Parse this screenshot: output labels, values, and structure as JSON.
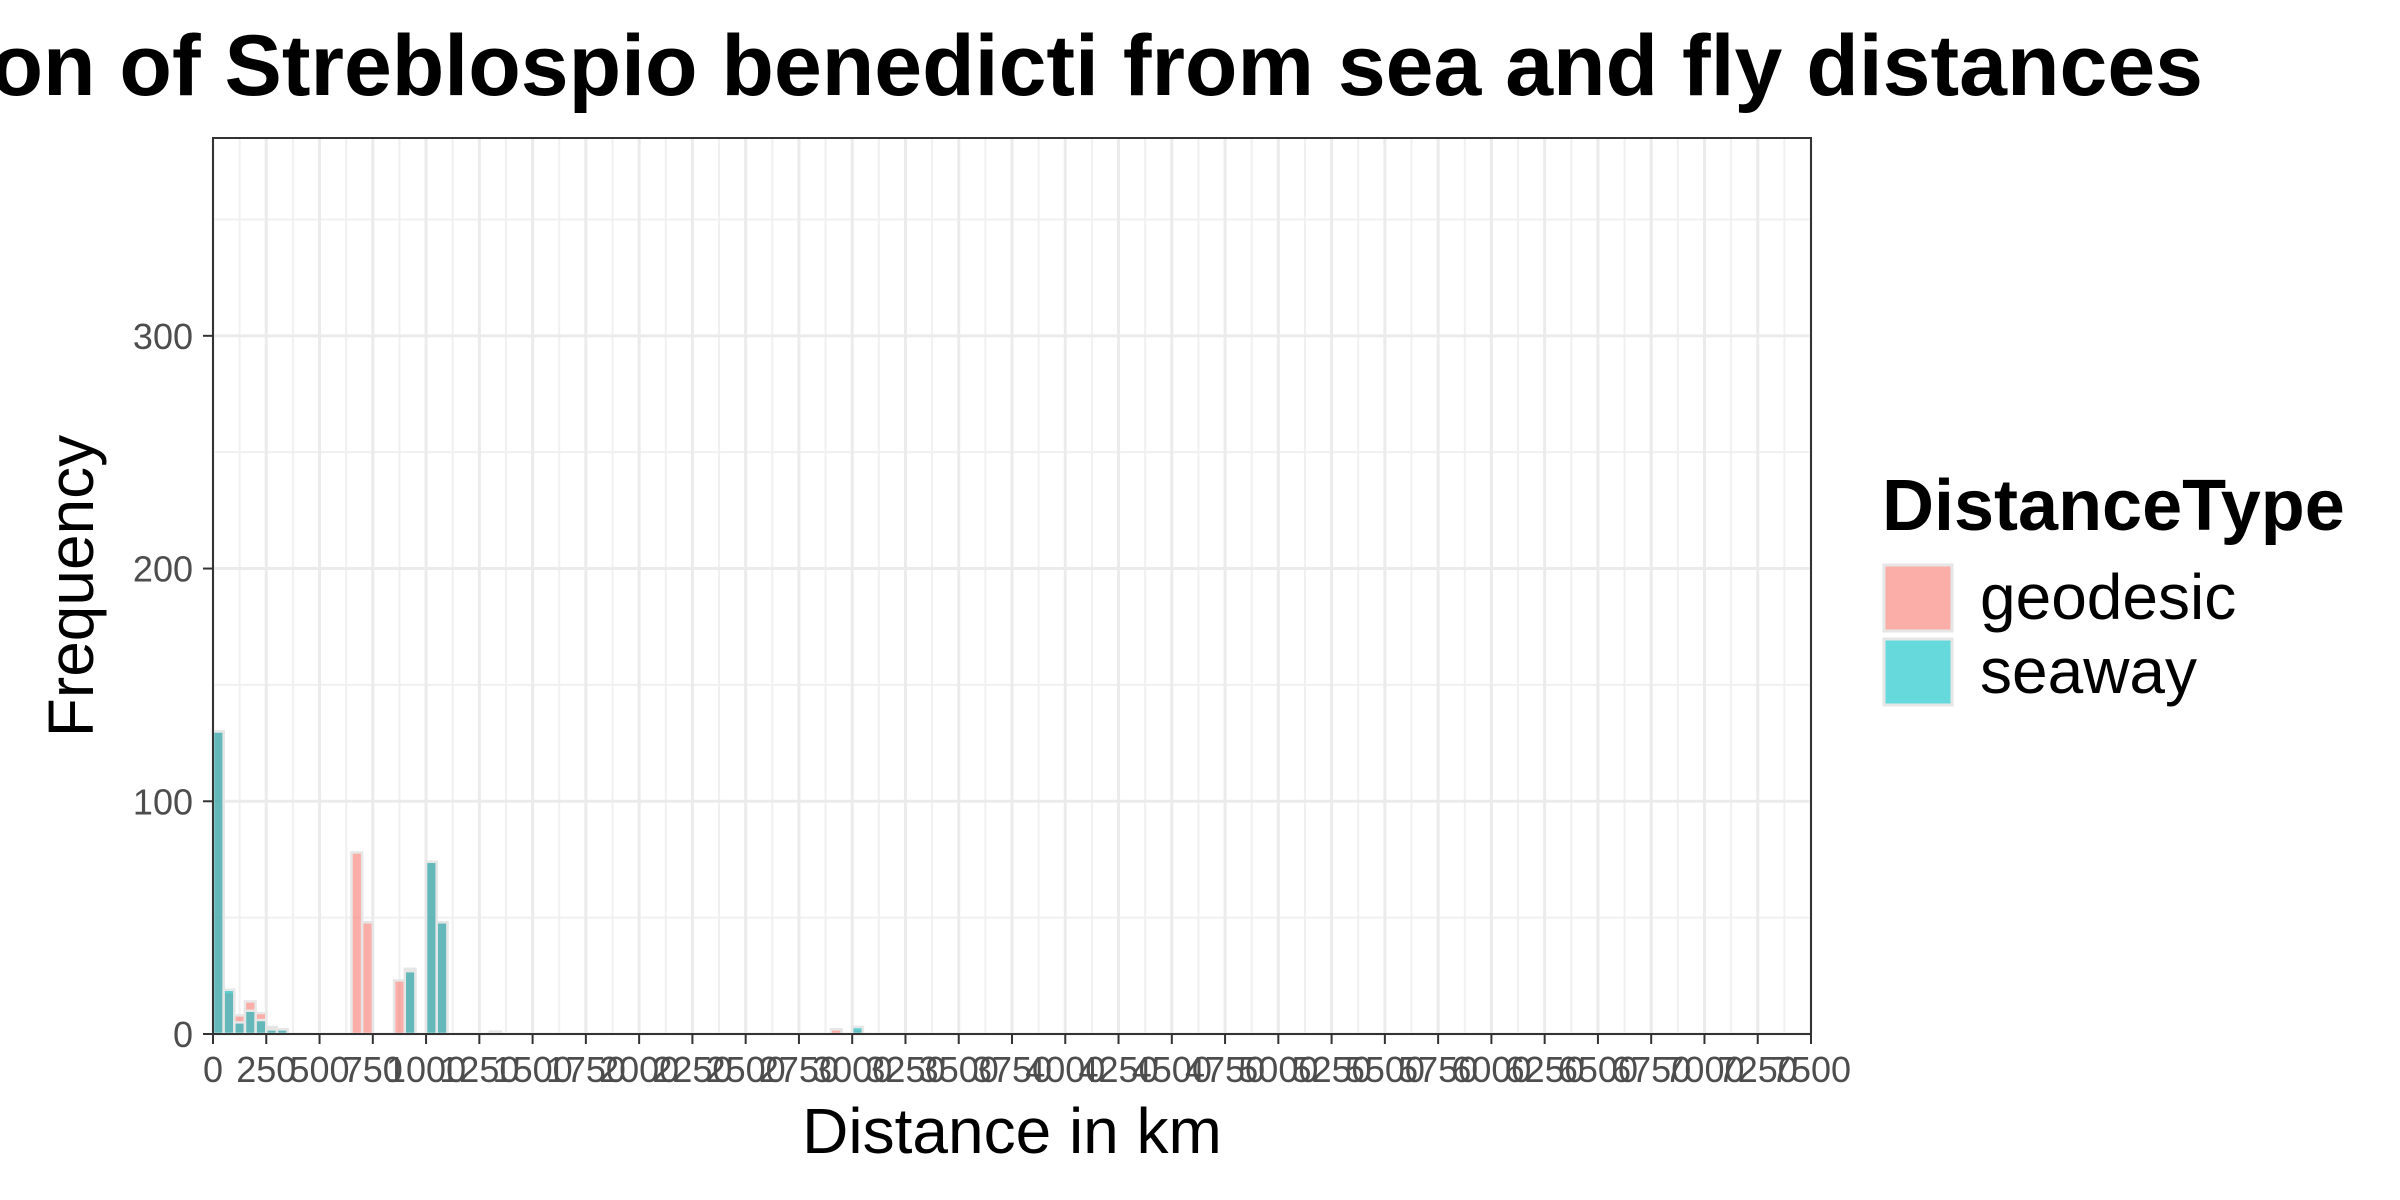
{
  "chart_data": {
    "type": "bar",
    "title": "Distribution of Streblospio benedicti from sea and fly distances",
    "xlabel": "Distance in km",
    "ylabel": "Frequency",
    "xlim": [
      0,
      7500
    ],
    "ylim": [
      0,
      385
    ],
    "x_ticks": [
      "0",
      "250",
      "500",
      "750",
      "1000",
      "1250",
      "1500",
      "1750",
      "2000",
      "2250",
      "2500",
      "2750",
      "3000",
      "3250",
      "3500",
      "3750",
      "4000",
      "4250",
      "4500",
      "4750",
      "5000",
      "5250",
      "5500",
      "5750",
      "6000",
      "6250",
      "6500",
      "6750",
      "7000",
      "7250",
      "7500"
    ],
    "y_ticks": [
      0,
      100,
      200,
      300
    ],
    "grid": true,
    "bin_width": 50,
    "legend": {
      "title": "DistanceType",
      "position": "right",
      "entries": [
        "geodesic",
        "seaway"
      ]
    },
    "series": [
      {
        "name": "geodesic",
        "color": "#F8766D",
        "bins": [
          {
            "x": 25,
            "y": 130
          },
          {
            "x": 75,
            "y": 18
          },
          {
            "x": 125,
            "y": 8
          },
          {
            "x": 175,
            "y": 14
          },
          {
            "x": 225,
            "y": 9
          },
          {
            "x": 275,
            "y": 3
          },
          {
            "x": 325,
            "y": 2
          },
          {
            "x": 675,
            "y": 78
          },
          {
            "x": 725,
            "y": 48
          },
          {
            "x": 875,
            "y": 23
          },
          {
            "x": 925,
            "y": 28
          },
          {
            "x": 1025,
            "y": 74
          },
          {
            "x": 1075,
            "y": 48
          },
          {
            "x": 1325,
            "y": 1
          },
          {
            "x": 2925,
            "y": 2
          },
          {
            "x": 3025,
            "y": 2
          }
        ]
      },
      {
        "name": "seaway",
        "color": "#00BFC4",
        "bins": [
          {
            "x": 25,
            "y": 130
          },
          {
            "x": 75,
            "y": 19
          },
          {
            "x": 125,
            "y": 5
          },
          {
            "x": 175,
            "y": 10
          },
          {
            "x": 225,
            "y": 6
          },
          {
            "x": 275,
            "y": 2
          },
          {
            "x": 325,
            "y": 2
          },
          {
            "x": 925,
            "y": 27
          },
          {
            "x": 1025,
            "y": 74
          },
          {
            "x": 1075,
            "y": 48
          },
          {
            "x": 1325,
            "y": 1
          },
          {
            "x": 3025,
            "y": 3
          }
        ]
      }
    ]
  }
}
